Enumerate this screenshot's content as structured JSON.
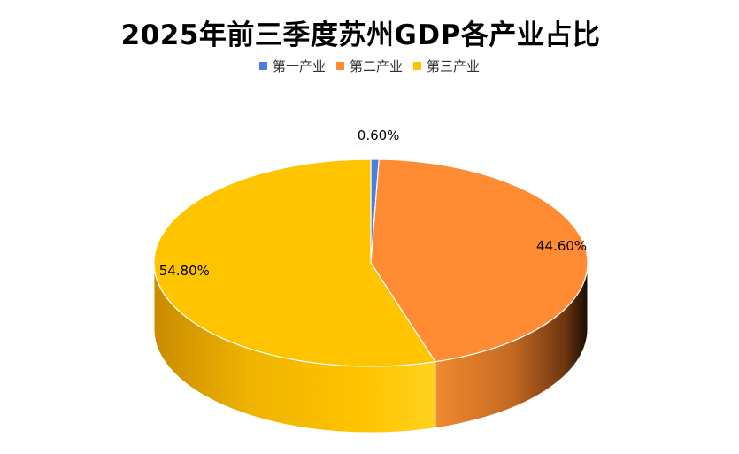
{
  "chart_data": {
    "type": "pie",
    "title": "2025年前三季度苏州GDP各产业占比",
    "categories": [
      "第一产业",
      "第二产业",
      "第三产业"
    ],
    "values": [
      0.6,
      44.6,
      54.8
    ],
    "value_labels": [
      "0.60%",
      "44.60%",
      "54.80%"
    ],
    "unit": "%",
    "style": "3d",
    "legend_position": "top",
    "colors": [
      "#4A7FE0",
      "#FF8C33",
      "#FFC400"
    ]
  }
}
